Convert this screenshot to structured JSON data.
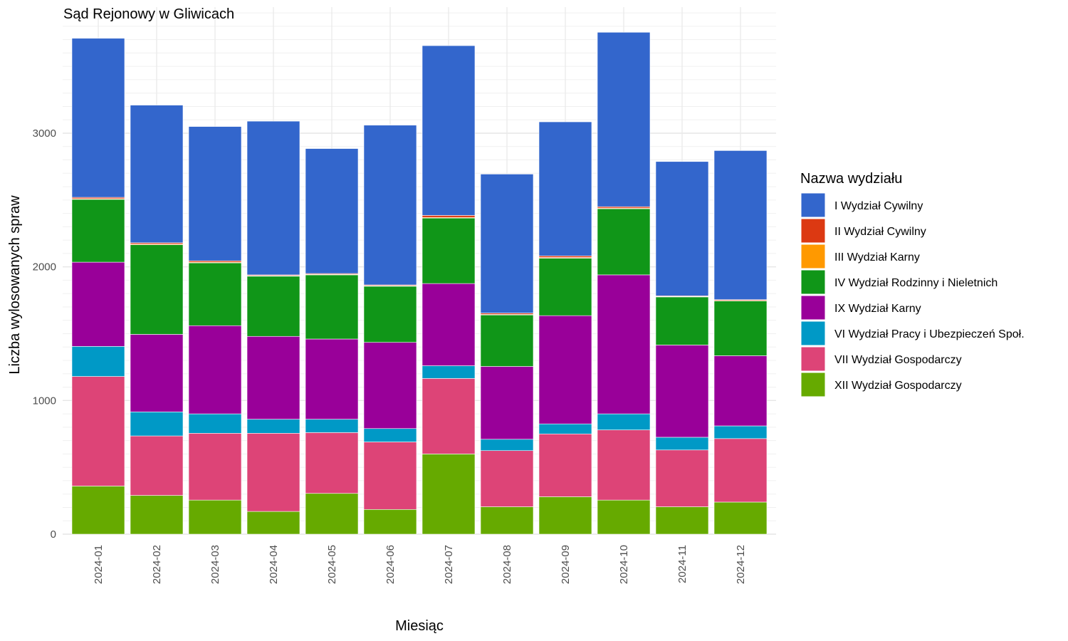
{
  "chart_data": {
    "type": "bar",
    "stacked": true,
    "title": "Sąd Rejonowy w Gliwicach",
    "xlabel": "Miesiąc",
    "ylabel": "Liczba wylosowanych spraw",
    "ylim": [
      0,
      3950
    ],
    "yticks": [
      0,
      1000,
      2000,
      3000
    ],
    "ytick_labels": [
      "0",
      "1000",
      "2000",
      "3000"
    ],
    "grid": true,
    "legend_title": "Nazwa wydziału",
    "legend_position": "right",
    "categories": [
      "2024-01",
      "2024-02",
      "2024-03",
      "2024-04",
      "2024-05",
      "2024-06",
      "2024-07",
      "2024-08",
      "2024-09",
      "2024-10",
      "2024-11",
      "2024-12"
    ],
    "series": [
      {
        "name": "XII Wydział Gospodarczy",
        "color": "#66aa00",
        "values": [
          360,
          290,
          255,
          170,
          305,
          185,
          600,
          205,
          280,
          255,
          205,
          240
        ]
      },
      {
        "name": "VII Wydział Gospodarczy",
        "color": "#dd4477",
        "values": [
          820,
          445,
          500,
          585,
          455,
          505,
          565,
          420,
          470,
          525,
          425,
          475
        ]
      },
      {
        "name": "VI Wydział Pracy i Ubezpieczeń Społ.",
        "color": "#0099c6",
        "values": [
          225,
          180,
          145,
          105,
          100,
          100,
          95,
          85,
          75,
          120,
          95,
          95
        ]
      },
      {
        "name": "IX Wydział Karny",
        "color": "#990099",
        "values": [
          630,
          580,
          660,
          620,
          600,
          645,
          615,
          545,
          810,
          1040,
          690,
          525
        ]
      },
      {
        "name": "IV Wydział Rodzinny i Nieletnich",
        "color": "#109618",
        "values": [
          470,
          670,
          470,
          450,
          480,
          420,
          490,
          385,
          430,
          495,
          360,
          410
        ]
      },
      {
        "name": "III Wydział Karny",
        "color": "#ff9900",
        "values": [
          5,
          5,
          5,
          4,
          4,
          4,
          5,
          4,
          5,
          5,
          3,
          4
        ]
      },
      {
        "name": "II Wydział Cywilny",
        "color": "#dc3912",
        "values": [
          10,
          10,
          10,
          6,
          6,
          6,
          15,
          10,
          12,
          10,
          5,
          6
        ]
      },
      {
        "name": "I Wydział Cywilny",
        "color": "#3366cc",
        "values": [
          1190,
          1030,
          1005,
          1150,
          935,
          1195,
          1270,
          1040,
          1003,
          1305,
          1005,
          1115
        ]
      }
    ],
    "legend_order": [
      "I Wydział Cywilny",
      "II Wydział Cywilny",
      "III Wydział Karny",
      "IV Wydział Rodzinny i Nieletnich",
      "IX Wydział Karny",
      "VI Wydział Pracy i Ubezpieczeń Społ.",
      "VII Wydział Gospodarczy",
      "XII Wydział Gospodarczy"
    ]
  }
}
